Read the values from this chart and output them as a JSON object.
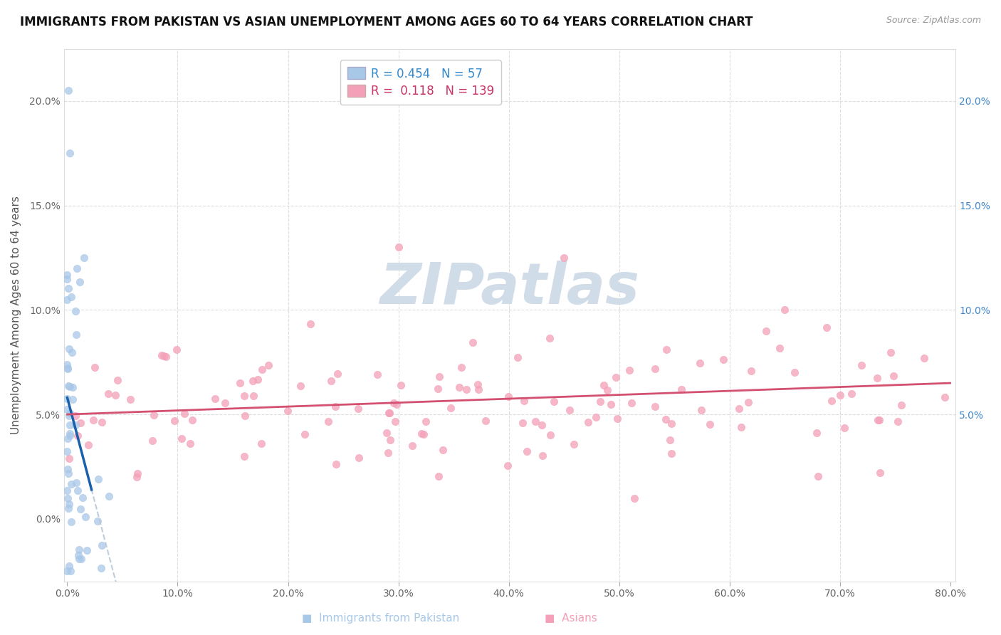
{
  "title": "IMMIGRANTS FROM PAKISTAN VS ASIAN UNEMPLOYMENT AMONG AGES 60 TO 64 YEARS CORRELATION CHART",
  "source": "Source: ZipAtlas.com",
  "ylabel": "Unemployment Among Ages 60 to 64 years",
  "legend_R1": "0.454",
  "legend_N1": "57",
  "legend_R2": "0.118",
  "legend_N2": "139",
  "xlim": [
    -0.003,
    0.805
  ],
  "ylim": [
    -0.03,
    0.225
  ],
  "xtick_vals": [
    0.0,
    0.1,
    0.2,
    0.3,
    0.4,
    0.5,
    0.6,
    0.7,
    0.8
  ],
  "xticklabels": [
    "0.0%",
    "10.0%",
    "20.0%",
    "30.0%",
    "40.0%",
    "50.0%",
    "60.0%",
    "70.0%",
    "80.0%"
  ],
  "ytick_vals": [
    0.0,
    0.05,
    0.1,
    0.15,
    0.2
  ],
  "yticklabels": [
    "0.0%",
    "5.0%",
    "10.0%",
    "15.0%",
    "20.0%"
  ],
  "right_ytick_vals": [
    0.05,
    0.1,
    0.15,
    0.2
  ],
  "right_yticklabels": [
    "5.0%",
    "10.0%",
    "15.0%",
    "20.0%"
  ],
  "pakistan_color": "#a8c8e8",
  "asian_color": "#f4a0b8",
  "pakistan_trend_color": "#1a5faa",
  "asian_trend_color": "#d45070",
  "dashed_color": "#b8c8d8",
  "background_color": "#ffffff",
  "grid_color": "#dddddd",
  "watermark_color": "#d0dce8",
  "title_fontsize": 12,
  "axis_fontsize": 11,
  "tick_fontsize": 10,
  "legend_fontsize": 12
}
